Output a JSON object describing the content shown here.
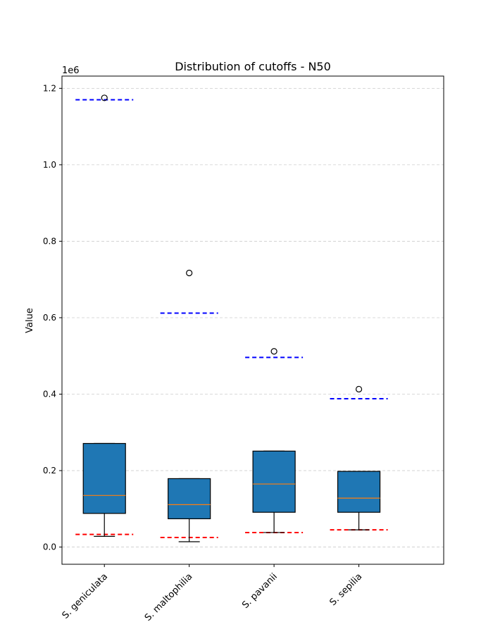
{
  "chart_data": {
    "type": "box",
    "title": "Distribution of cutoffs - N50",
    "xlabel": "",
    "ylabel": "Value",
    "y_offset_label": "1e6",
    "y_scale_factor": 1000000,
    "ylim": [
      -45000,
      1232000
    ],
    "yticks": [
      0.0,
      0.2,
      0.4,
      0.6,
      0.8,
      1.0,
      1.2
    ],
    "ytick_labels": [
      "0.0",
      "0.2",
      "0.4",
      "0.6",
      "0.8",
      "1.0",
      "1.2"
    ],
    "grid": "y",
    "categories": [
      "S. geniculata",
      "S. maltophilia",
      "S. pavanii",
      "S. sepilia"
    ],
    "boxes": [
      {
        "whisker_low": 28000,
        "q1": 88000,
        "median": 135000,
        "q3": 271000,
        "whisker_high": 271000,
        "outliers": [
          1175000
        ],
        "lower_cutoff": 33000,
        "upper_cutoff": 1170000
      },
      {
        "whisker_low": 14000,
        "q1": 74000,
        "median": 111000,
        "q3": 179000,
        "whisker_high": 179000,
        "outliers": [
          717000
        ],
        "lower_cutoff": 25000,
        "upper_cutoff": 612000
      },
      {
        "whisker_low": 38000,
        "q1": 91000,
        "median": 165000,
        "q3": 251000,
        "whisker_high": 251000,
        "outliers": [
          512000
        ],
        "lower_cutoff": 38000,
        "upper_cutoff": 496000
      },
      {
        "whisker_low": 45000,
        "q1": 91000,
        "median": 128000,
        "q3": 198000,
        "whisker_high": 198000,
        "outliers": [
          413000
        ],
        "lower_cutoff": 45000,
        "upper_cutoff": 388000
      }
    ],
    "colors": {
      "box_fill": "#1f77b4",
      "median": "#ff7f0e",
      "upper_cutoff": "#0000ff",
      "lower_cutoff": "#ff0000",
      "grid": "#cccccc"
    }
  }
}
